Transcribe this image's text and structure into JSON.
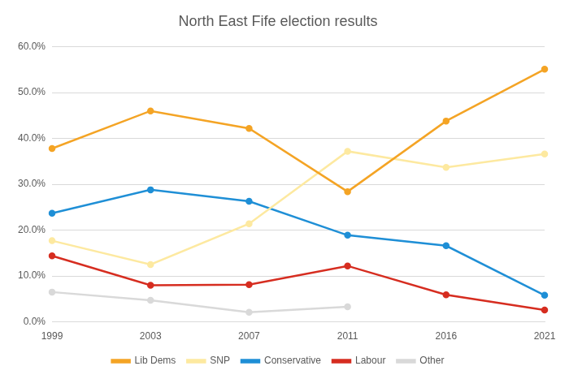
{
  "chart_data": {
    "type": "line",
    "title": "North East Fife election results",
    "categories": [
      "1999",
      "2003",
      "2007",
      "2011",
      "2016",
      "2021"
    ],
    "series": [
      {
        "name": "Lib Dems",
        "color": "#f4a425",
        "values": [
          37.8,
          46.0,
          42.2,
          28.4,
          43.8,
          55.1
        ]
      },
      {
        "name": "SNP",
        "color": "#fde9a0",
        "values": [
          17.7,
          12.5,
          21.4,
          37.2,
          33.7,
          36.6
        ]
      },
      {
        "name": "Conservative",
        "color": "#1f8fd6",
        "values": [
          23.7,
          28.8,
          26.3,
          18.9,
          16.6,
          5.8
        ]
      },
      {
        "name": "Labour",
        "color": "#d62d20",
        "values": [
          14.4,
          8.0,
          8.1,
          12.2,
          5.9,
          2.6
        ]
      },
      {
        "name": "Other",
        "color": "#d9d9d9",
        "values": [
          6.5,
          4.7,
          2.1,
          3.3,
          null,
          null
        ]
      }
    ],
    "ylim": [
      0,
      60
    ],
    "yticks": [
      {
        "value": 0,
        "label": "0.0%"
      },
      {
        "value": 10,
        "label": "10.0%"
      },
      {
        "value": 20,
        "label": "20.0%"
      },
      {
        "value": 30,
        "label": "30.0%"
      },
      {
        "value": 40,
        "label": "40.0%"
      },
      {
        "value": 50,
        "label": "50.0%"
      },
      {
        "value": 60,
        "label": "60.0%"
      }
    ],
    "grid": true,
    "legend": "bottom",
    "marker": "circle",
    "line_style": "solid"
  }
}
